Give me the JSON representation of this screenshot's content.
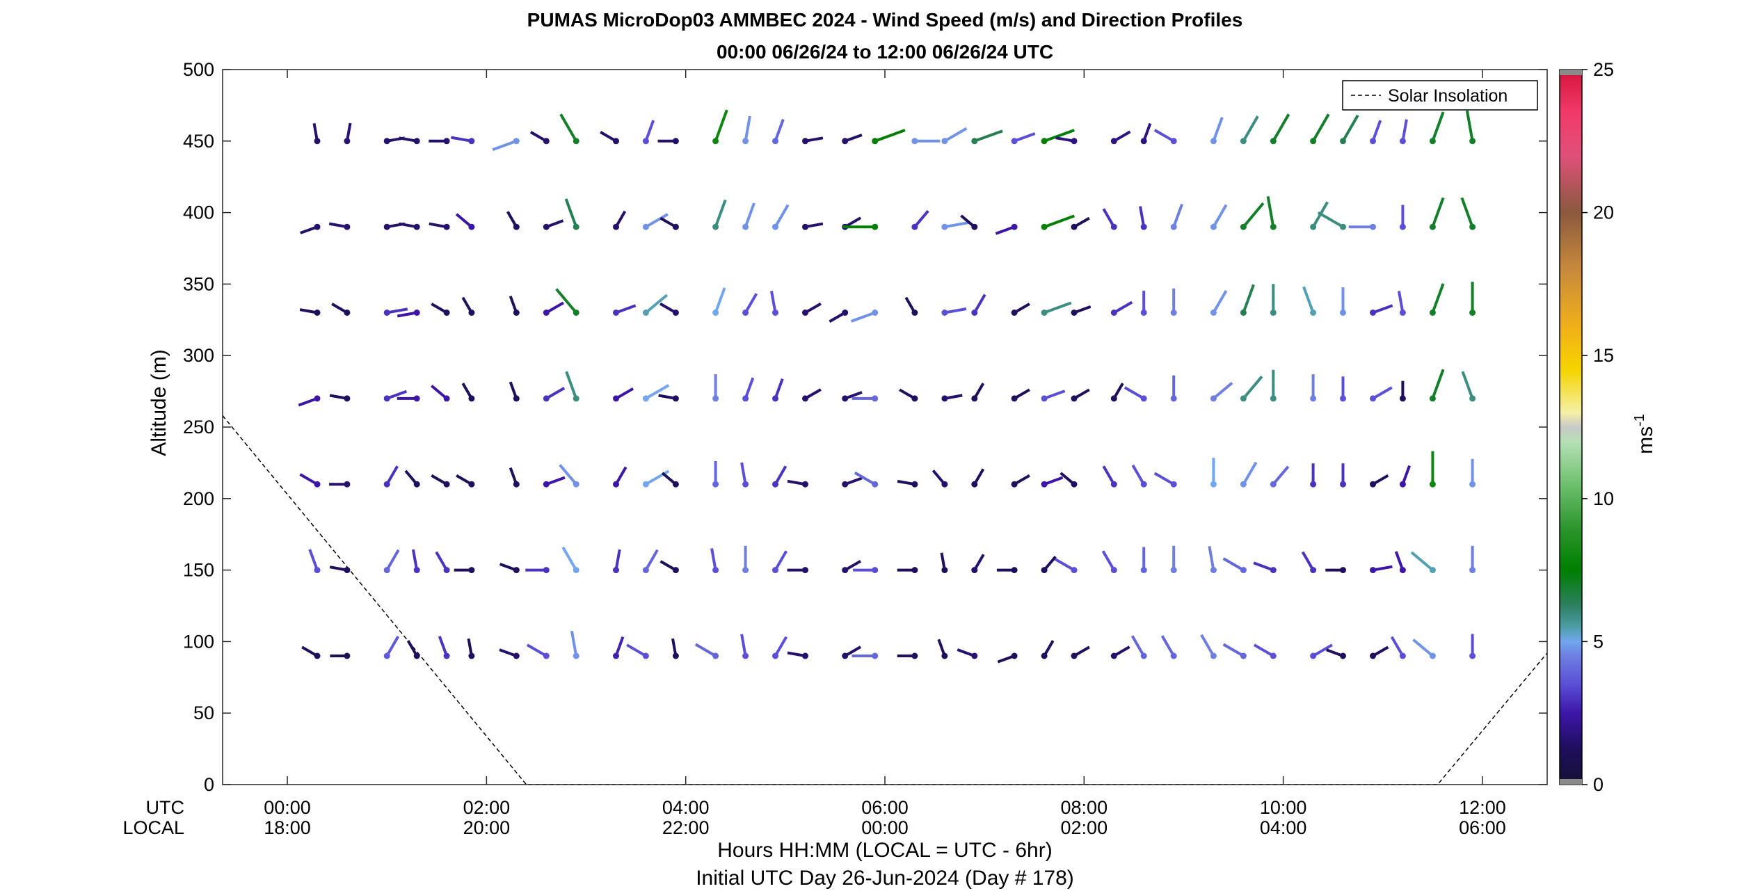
{
  "chart_data": {
    "type": "wind-barb-profile",
    "title": "PUMAS MicroDop03 AMMBEC 2024 - Wind Speed (m/s) and Direction Profiles",
    "subtitle": "00:00 06/26/24 to 12:00 06/26/24  UTC",
    "ylabel": "Altitude (m)",
    "xlabel": "Hours HH:MM  (LOCAL = UTC - 6hr)",
    "xlabel2": "Initial UTC Day 26-Jun-2024 (Day # 178)",
    "utc_label": "UTC",
    "local_label": "LOCAL",
    "ylim": [
      0,
      500
    ],
    "xlim_hours": [
      -0.65,
      12.65
    ],
    "y_ticks": [
      0,
      50,
      100,
      150,
      200,
      250,
      300,
      350,
      400,
      450,
      500
    ],
    "x_ticks": [
      {
        "hour": 0,
        "utc": "00:00",
        "local": "18:00"
      },
      {
        "hour": 2,
        "utc": "02:00",
        "local": "20:00"
      },
      {
        "hour": 4,
        "utc": "04:00",
        "local": "22:00"
      },
      {
        "hour": 6,
        "utc": "06:00",
        "local": "00:00"
      },
      {
        "hour": 8,
        "utc": "08:00",
        "local": "02:00"
      },
      {
        "hour": 10,
        "utc": "10:00",
        "local": "04:00"
      },
      {
        "hour": 12,
        "utc": "12:00",
        "local": "06:00"
      }
    ],
    "colorbar": {
      "range": [
        0,
        25
      ],
      "ticks": [
        0,
        5,
        10,
        15,
        20,
        25
      ],
      "label": "ms",
      "label_exp": "-1"
    },
    "legend": {
      "entry": "Solar Insolation",
      "position": "top-right"
    },
    "solar_insolation": [
      [
        -0.65,
        258
      ],
      [
        2.4,
        0
      ],
      [
        11.55,
        0
      ],
      [
        12.65,
        92
      ]
    ],
    "altitudes": [
      90,
      150,
      210,
      270,
      330,
      390,
      450
    ],
    "times": [
      0.3,
      0.6,
      1.0,
      1.3,
      1.6,
      1.85,
      2.3,
      2.6,
      2.9,
      3.3,
      3.6,
      3.9,
      4.3,
      4.6,
      4.9,
      5.2,
      5.6,
      5.9,
      6.3,
      6.6,
      6.9,
      7.3,
      7.6,
      7.9,
      8.3,
      8.6,
      8.9,
      9.3,
      9.6,
      9.9,
      10.3,
      10.6,
      10.9,
      11.2,
      11.5,
      11.9
    ],
    "speeds": [
      [
        1.0,
        0.8,
        3.2,
        1.0,
        2.5,
        1.0,
        1.2,
        3.0,
        4.5,
        2.2,
        3.0,
        1.0,
        3.5,
        3.0,
        3.0,
        1.2,
        1.2,
        3.5,
        1.0,
        1.0,
        1.3,
        1.0,
        1.0,
        1.0,
        1.2,
        3.5,
        3.5,
        4.0,
        3.5,
        3.0,
        3.0,
        1.0,
        1.0,
        3.0,
        4.5,
        3.0
      ],
      [
        3.0,
        1.0,
        3.5,
        2.5,
        2.5,
        1.0,
        1.0,
        2.5,
        5.0,
        2.5,
        3.5,
        1.0,
        3.0,
        4.0,
        3.0,
        1.2,
        1.2,
        3.0,
        1.0,
        1.0,
        1.2,
        1.0,
        1.0,
        3.0,
        3.0,
        3.5,
        4.0,
        4.0,
        3.5,
        2.5,
        2.5,
        1.0,
        2.0,
        2.0,
        5.5,
        4.0
      ],
      [
        2.0,
        1.2,
        2.5,
        1.0,
        1.0,
        1.0,
        1.0,
        2.0,
        4.5,
        2.0,
        5.0,
        1.0,
        3.5,
        3.0,
        2.5,
        1.2,
        1.2,
        3.5,
        1.0,
        1.2,
        1.0,
        1.0,
        2.0,
        1.0,
        2.5,
        3.0,
        3.0,
        5.0,
        4.5,
        3.5,
        2.5,
        2.5,
        1.0,
        2.0,
        8.0,
        4.5
      ],
      [
        2.0,
        1.0,
        2.5,
        2.0,
        2.0,
        1.0,
        1.0,
        2.5,
        6.0,
        2.0,
        5.0,
        1.0,
        4.0,
        3.0,
        2.5,
        1.2,
        1.2,
        3.5,
        1.0,
        1.2,
        1.0,
        1.0,
        3.0,
        1.0,
        1.0,
        3.0,
        3.5,
        4.0,
        6.0,
        6.0,
        4.0,
        3.0,
        3.0,
        1.0,
        7.0,
        6.0
      ],
      [
        1.0,
        1.0,
        2.5,
        2.0,
        1.0,
        1.0,
        1.0,
        2.0,
        7.0,
        2.5,
        5.5,
        1.2,
        5.0,
        3.0,
        3.0,
        1.2,
        1.2,
        4.5,
        1.0,
        3.0,
        2.5,
        1.0,
        6.0,
        1.0,
        2.5,
        3.0,
        4.0,
        4.5,
        6.5,
        6.0,
        5.5,
        4.5,
        2.5,
        3.0,
        7.0,
        7.0
      ],
      [
        1.2,
        1.3,
        1.2,
        1.2,
        1.2,
        2.0,
        1.0,
        1.2,
        6.5,
        1.2,
        4.5,
        1.0,
        6.0,
        4.5,
        4.5,
        1.2,
        1.2,
        7.5,
        2.5,
        4.5,
        1.0,
        2.0,
        7.5,
        1.0,
        2.5,
        2.5,
        4.0,
        4.5,
        7.0,
        7.0,
        6.0,
        6.0,
        4.0,
        3.0,
        7.0,
        7.0
      ],
      [
        1.2,
        1.3,
        1.2,
        1.2,
        1.2,
        2.5,
        4.5,
        1.2,
        7.0,
        1.2,
        3.0,
        1.2,
        8.0,
        4.5,
        3.5,
        1.2,
        1.2,
        7.5,
        4.5,
        4.5,
        6.5,
        3.0,
        7.5,
        1.5,
        1.5,
        1.5,
        3.0,
        4.5,
        6.0,
        7.0,
        7.0,
        6.5,
        3.0,
        3.0,
        7.0,
        7.0
      ]
    ],
    "directions": [
      [
        300,
        270,
        30,
        330,
        340,
        350,
        290,
        300,
        350,
        20,
        300,
        350,
        300,
        350,
        30,
        280,
        60,
        270,
        270,
        340,
        290,
        250,
        30,
        60,
        60,
        330,
        330,
        330,
        300,
        300,
        60,
        290,
        60,
        330,
        310,
        0
      ],
      [
        340,
        280,
        30,
        350,
        330,
        270,
        290,
        270,
        330,
        10,
        30,
        300,
        350,
        0,
        30,
        270,
        60,
        270,
        270,
        350,
        30,
        270,
        40,
        300,
        330,
        0,
        0,
        350,
        300,
        290,
        330,
        270,
        80,
        340,
        310,
        0
      ],
      [
        300,
        270,
        30,
        320,
        300,
        300,
        340,
        70,
        320,
        30,
        60,
        310,
        0,
        350,
        30,
        280,
        70,
        300,
        280,
        320,
        30,
        60,
        70,
        310,
        330,
        330,
        300,
        0,
        30,
        40,
        0,
        0,
        60,
        20,
        0,
        0
      ],
      [
        250,
        280,
        70,
        270,
        310,
        330,
        340,
        60,
        340,
        60,
        60,
        280,
        0,
        20,
        20,
        60,
        70,
        270,
        300,
        80,
        30,
        60,
        70,
        60,
        30,
        300,
        0,
        50,
        40,
        0,
        0,
        0,
        60,
        0,
        20,
        340
      ],
      [
        280,
        300,
        80,
        260,
        300,
        330,
        340,
        60,
        320,
        70,
        50,
        300,
        20,
        30,
        350,
        60,
        240,
        250,
        330,
        80,
        30,
        60,
        70,
        70,
        60,
        0,
        0,
        30,
        20,
        0,
        340,
        0,
        70,
        350,
        20,
        0
      ],
      [
        250,
        280,
        80,
        280,
        280,
        310,
        330,
        70,
        340,
        30,
        60,
        300,
        20,
        20,
        30,
        80,
        60,
        270,
        40,
        80,
        310,
        250,
        70,
        60,
        330,
        350,
        20,
        30,
        40,
        350,
        30,
        300,
        270,
        0,
        20,
        340
      ],
      [
        350,
        10,
        80,
        280,
        270,
        280,
        250,
        300,
        330,
        300,
        20,
        270,
        20,
        10,
        20,
        80,
        70,
        70,
        90,
        60,
        70,
        70,
        70,
        280,
        60,
        20,
        300,
        20,
        30,
        30,
        30,
        30,
        20,
        10,
        20,
        350
      ]
    ]
  }
}
